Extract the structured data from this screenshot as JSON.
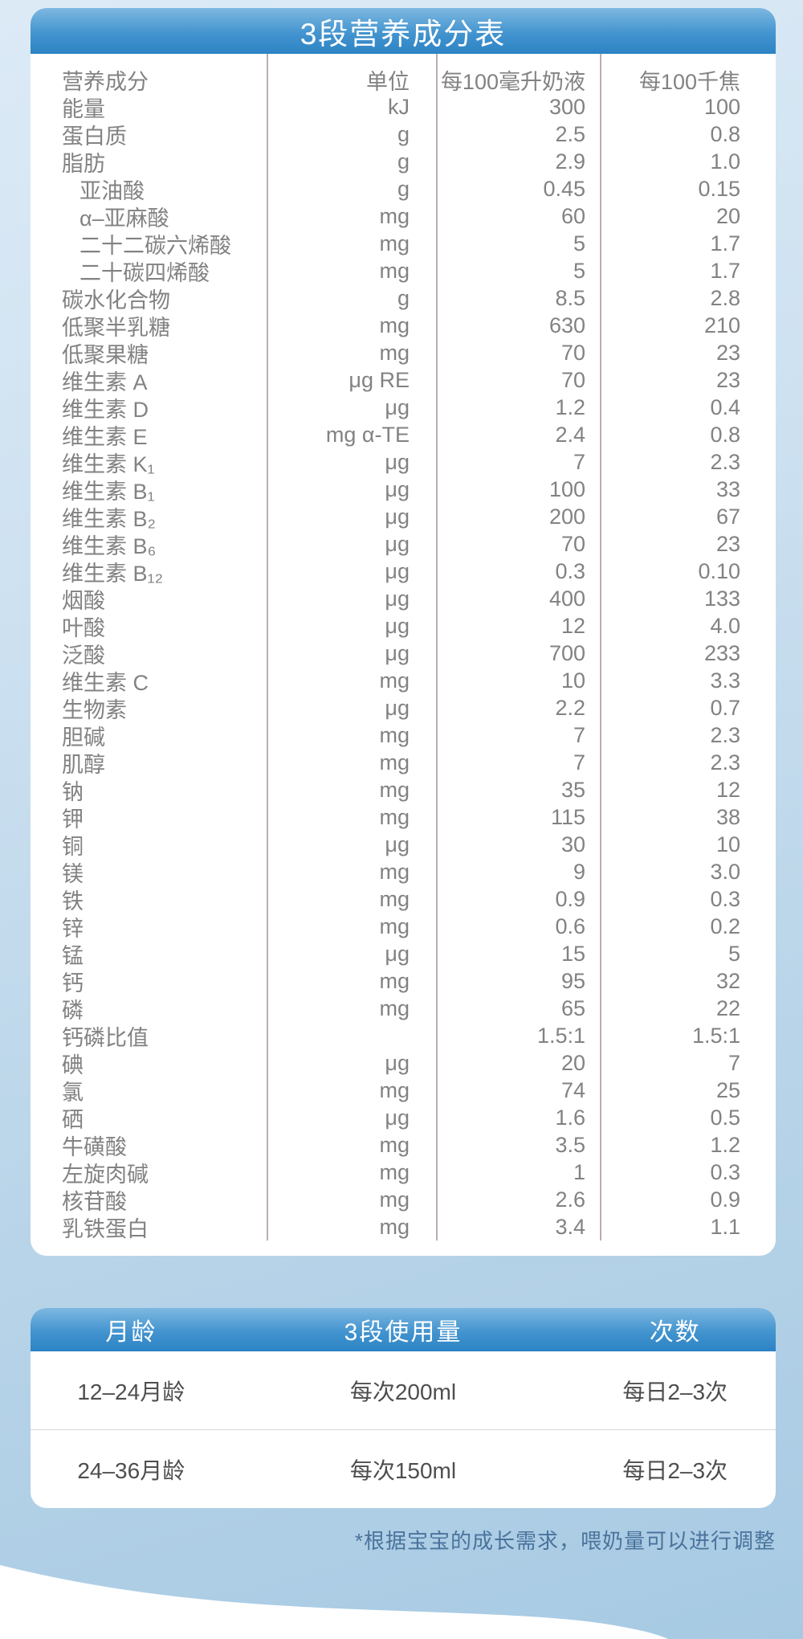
{
  "nutrition_card": {
    "title": "3段营养成分表",
    "columns": [
      "营养成分",
      "单位",
      "每100毫升奶液",
      "每100千焦"
    ],
    "rows": [
      {
        "name": "能量",
        "unit": "kJ",
        "per_100ml": "300",
        "per_100kj": "100",
        "indent": false
      },
      {
        "name": "蛋白质",
        "unit": "g",
        "per_100ml": "2.5",
        "per_100kj": "0.8",
        "indent": false
      },
      {
        "name": "脂肪",
        "unit": "g",
        "per_100ml": "2.9",
        "per_100kj": "1.0",
        "indent": false
      },
      {
        "name": "亚油酸",
        "unit": "g",
        "per_100ml": "0.45",
        "per_100kj": "0.15",
        "indent": true
      },
      {
        "name": "α–亚麻酸",
        "unit": "mg",
        "per_100ml": "60",
        "per_100kj": "20",
        "indent": true
      },
      {
        "name": "二十二碳六烯酸",
        "unit": "mg",
        "per_100ml": "5",
        "per_100kj": "1.7",
        "indent": true
      },
      {
        "name": "二十碳四烯酸",
        "unit": "mg",
        "per_100ml": "5",
        "per_100kj": "1.7",
        "indent": true
      },
      {
        "name": "碳水化合物",
        "unit": "g",
        "per_100ml": "8.5",
        "per_100kj": "2.8",
        "indent": false
      },
      {
        "name": "低聚半乳糖",
        "unit": "mg",
        "per_100ml": "630",
        "per_100kj": "210",
        "indent": false
      },
      {
        "name": "低聚果糖",
        "unit": "mg",
        "per_100ml": "70",
        "per_100kj": "23",
        "indent": false
      },
      {
        "name": "维生素 A",
        "unit": "μg RE",
        "per_100ml": "70",
        "per_100kj": "23",
        "indent": false
      },
      {
        "name": "维生素 D",
        "unit": "μg",
        "per_100ml": "1.2",
        "per_100kj": "0.4",
        "indent": false
      },
      {
        "name": "维生素 E",
        "unit": "mg α-TE",
        "per_100ml": "2.4",
        "per_100kj": "0.8",
        "indent": false
      },
      {
        "name": "维生素 K₁",
        "unit": "μg",
        "per_100ml": "7",
        "per_100kj": "2.3",
        "indent": false
      },
      {
        "name": "维生素 B₁",
        "unit": "μg",
        "per_100ml": "100",
        "per_100kj": "33",
        "indent": false
      },
      {
        "name": "维生素 B₂",
        "unit": "μg",
        "per_100ml": "200",
        "per_100kj": "67",
        "indent": false
      },
      {
        "name": "维生素 B₆",
        "unit": "μg",
        "per_100ml": "70",
        "per_100kj": "23",
        "indent": false
      },
      {
        "name": "维生素 B₁₂",
        "unit": "μg",
        "per_100ml": "0.3",
        "per_100kj": "0.10",
        "indent": false
      },
      {
        "name": "烟酸",
        "unit": "μg",
        "per_100ml": "400",
        "per_100kj": "133",
        "indent": false
      },
      {
        "name": "叶酸",
        "unit": "μg",
        "per_100ml": "12",
        "per_100kj": "4.0",
        "indent": false
      },
      {
        "name": "泛酸",
        "unit": "μg",
        "per_100ml": "700",
        "per_100kj": "233",
        "indent": false
      },
      {
        "name": "维生素 C",
        "unit": "mg",
        "per_100ml": "10",
        "per_100kj": "3.3",
        "indent": false
      },
      {
        "name": "生物素",
        "unit": "μg",
        "per_100ml": "2.2",
        "per_100kj": "0.7",
        "indent": false
      },
      {
        "name": "胆碱",
        "unit": "mg",
        "per_100ml": "7",
        "per_100kj": "2.3",
        "indent": false
      },
      {
        "name": "肌醇",
        "unit": "mg",
        "per_100ml": "7",
        "per_100kj": "2.3",
        "indent": false
      },
      {
        "name": "钠",
        "unit": "mg",
        "per_100ml": "35",
        "per_100kj": "12",
        "indent": false
      },
      {
        "name": "钾",
        "unit": "mg",
        "per_100ml": "115",
        "per_100kj": "38",
        "indent": false
      },
      {
        "name": "铜",
        "unit": "μg",
        "per_100ml": "30",
        "per_100kj": "10",
        "indent": false
      },
      {
        "name": "镁",
        "unit": "mg",
        "per_100ml": "9",
        "per_100kj": "3.0",
        "indent": false
      },
      {
        "name": "铁",
        "unit": "mg",
        "per_100ml": "0.9",
        "per_100kj": "0.3",
        "indent": false
      },
      {
        "name": "锌",
        "unit": "mg",
        "per_100ml": "0.6",
        "per_100kj": "0.2",
        "indent": false
      },
      {
        "name": "锰",
        "unit": "μg",
        "per_100ml": "15",
        "per_100kj": "5",
        "indent": false
      },
      {
        "name": "钙",
        "unit": "mg",
        "per_100ml": "95",
        "per_100kj": "32",
        "indent": false
      },
      {
        "name": "磷",
        "unit": "mg",
        "per_100ml": "65",
        "per_100kj": "22",
        "indent": false
      },
      {
        "name": "钙磷比值",
        "unit": "",
        "per_100ml": "1.5:1",
        "per_100kj": "1.5:1",
        "indent": false
      },
      {
        "name": "碘",
        "unit": "μg",
        "per_100ml": "20",
        "per_100kj": "7",
        "indent": false
      },
      {
        "name": "氯",
        "unit": "mg",
        "per_100ml": "74",
        "per_100kj": "25",
        "indent": false
      },
      {
        "name": "硒",
        "unit": "μg",
        "per_100ml": "1.6",
        "per_100kj": "0.5",
        "indent": false
      },
      {
        "name": "牛磺酸",
        "unit": "mg",
        "per_100ml": "3.5",
        "per_100kj": "1.2",
        "indent": false
      },
      {
        "name": "左旋肉碱",
        "unit": "mg",
        "per_100ml": "1",
        "per_100kj": "0.3",
        "indent": false
      },
      {
        "name": "核苷酸",
        "unit": "mg",
        "per_100ml": "2.6",
        "per_100kj": "0.9",
        "indent": false
      },
      {
        "name": "乳铁蛋白",
        "unit": "mg",
        "per_100ml": "3.4",
        "per_100kj": "1.1",
        "indent": false
      }
    ]
  },
  "usage_card": {
    "headers": [
      "月龄",
      "3段使用量",
      "次数"
    ],
    "rows": [
      {
        "age": "12–24月龄",
        "amount": "每次200ml",
        "frequency": "每日2–3次"
      },
      {
        "age": "24–36月龄",
        "amount": "每次150ml",
        "frequency": "每日2–3次"
      }
    ]
  },
  "footnote": "*根据宝宝的成长需求，喂奶量可以进行调整",
  "colors": {
    "header_blue_top": "#7eb8e1",
    "header_blue_bottom": "#2c83c4",
    "table_text": "#828282",
    "divider": "#b9afac",
    "usage_text": "#4e4e4e",
    "footnote_text": "#4a739c",
    "background_top": "#dceaf6",
    "background_bottom": "#a7cae3"
  }
}
